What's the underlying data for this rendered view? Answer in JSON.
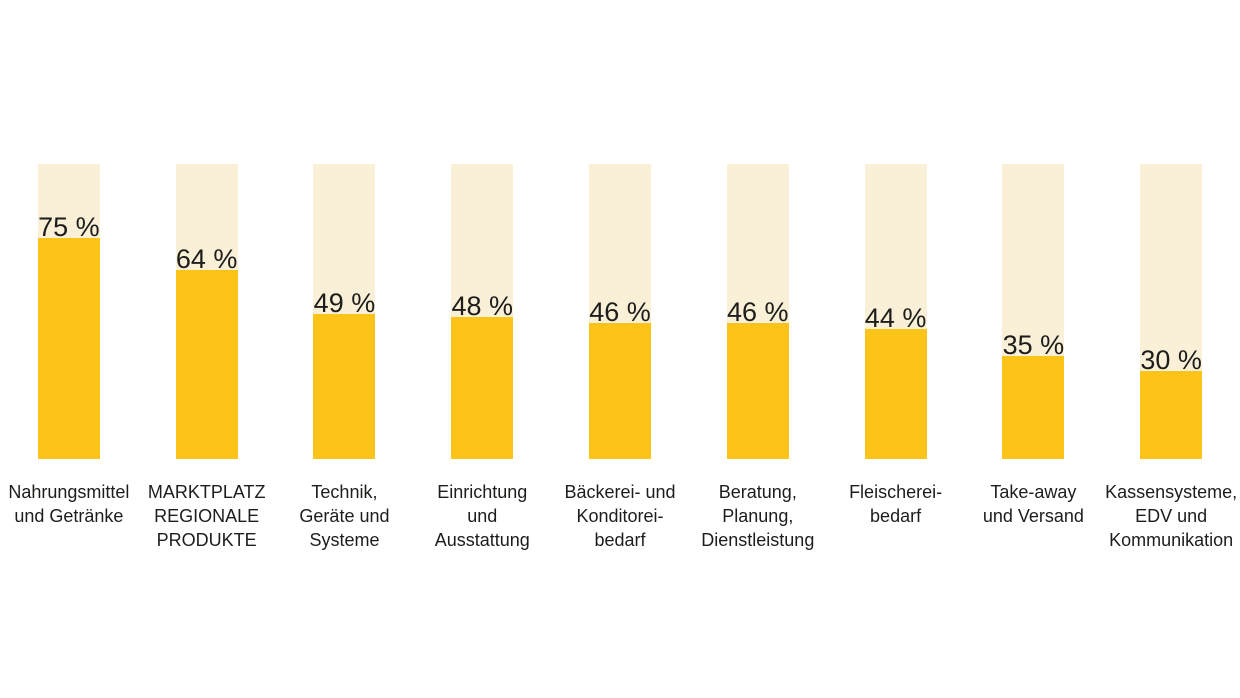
{
  "chart_data": {
    "type": "bar",
    "orientation": "vertical",
    "title": "",
    "xlabel": "",
    "ylabel": "",
    "ylim": [
      0,
      100
    ],
    "grid": false,
    "legend": false,
    "unit": "%",
    "categories": [
      [
        "Nahrungsmittel",
        "und Getränke"
      ],
      [
        "MARKTPLATZ",
        "REGIONALE",
        "PRODUKTE"
      ],
      [
        "Technik,",
        "Geräte und",
        "Systeme"
      ],
      [
        "Einrichtung",
        "und",
        "Ausstattung"
      ],
      [
        "Bäckerei- und",
        "Konditorei-",
        "bedarf"
      ],
      [
        "Beratung,",
        "Planung,",
        "Dienstleistung"
      ],
      [
        "Fleischerei-",
        "bedarf"
      ],
      [
        "Take-away",
        "und Versand"
      ],
      [
        "Kassensysteme,",
        "EDV und",
        "Kommunikation"
      ]
    ],
    "values": [
      75,
      64,
      49,
      48,
      46,
      46,
      44,
      35,
      30
    ],
    "value_labels": [
      "75 %",
      "64 %",
      "49 %",
      "48 %",
      "46 %",
      "46 %",
      "44 %",
      "35 %",
      "30 %"
    ],
    "colors": {
      "bar_fill": "#FCC319",
      "bar_track": "#FAF0D8",
      "text": "#1D1D1B",
      "background": "#FFFFFF"
    }
  }
}
